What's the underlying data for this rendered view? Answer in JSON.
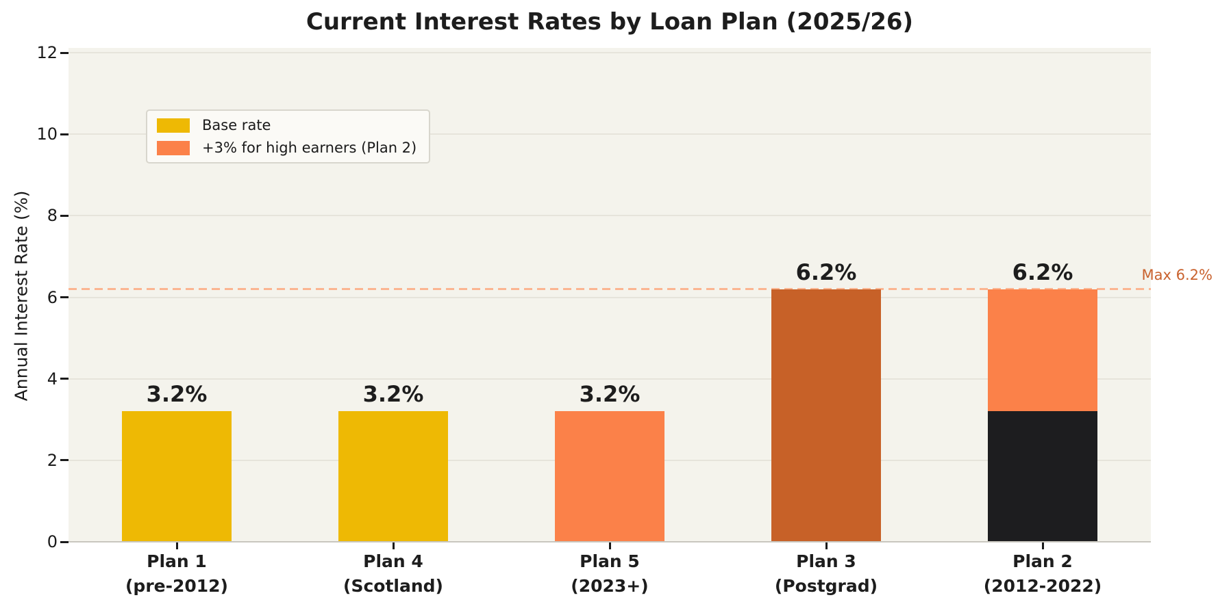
{
  "chart_data": {
    "type": "bar",
    "stacked": true,
    "title": "Current Interest Rates by Loan Plan (2025/26)",
    "ylabel": "Annual Interest Rate (%)",
    "xlabel": "",
    "ylim": [
      0,
      12
    ],
    "yticks": [
      0,
      2,
      4,
      6,
      8,
      10,
      12
    ],
    "grid": "horizontal",
    "legend_position": "upper-left",
    "legend": [
      {
        "label": "Base rate",
        "color": "#eeb904"
      },
      {
        "label": "+3% for high earners (Plan 2)",
        "color": "#fb8149"
      }
    ],
    "categories": [
      [
        "Plan 1",
        "(pre-2012)"
      ],
      [
        "Plan 4",
        "(Scotland)"
      ],
      [
        "Plan 5",
        "(2023+)"
      ],
      [
        "Plan 3",
        "(Postgrad)"
      ],
      [
        "Plan 2",
        "(2012-2022)"
      ]
    ],
    "bars": [
      {
        "total": 3.2,
        "value_label": "3.2%",
        "segments": [
          {
            "value": 3.2,
            "color": "#eeb904"
          }
        ]
      },
      {
        "total": 3.2,
        "value_label": "3.2%",
        "segments": [
          {
            "value": 3.2,
            "color": "#eeb904"
          }
        ]
      },
      {
        "total": 3.2,
        "value_label": "3.2%",
        "segments": [
          {
            "value": 3.2,
            "color": "#fb8149"
          }
        ]
      },
      {
        "total": 6.2,
        "value_label": "6.2%",
        "segments": [
          {
            "value": 6.2,
            "color": "#c76128"
          }
        ]
      },
      {
        "total": 6.2,
        "value_label": "6.2%",
        "segments": [
          {
            "value": 3.2,
            "color": "#1d1d1f"
          },
          {
            "value": 3.0,
            "color": "#fb8149"
          }
        ]
      }
    ],
    "reference_line": {
      "value": 6.2,
      "label": "Max 6.2%",
      "line_color": "#fbb591",
      "label_color": "#c9622e"
    },
    "colors": {
      "figure_background": "#ffffff",
      "plot_background": "#f4f3ec",
      "gridline": "#e6e4db",
      "axis_line": "#c8c6be",
      "text": "#1a1a1a"
    }
  }
}
